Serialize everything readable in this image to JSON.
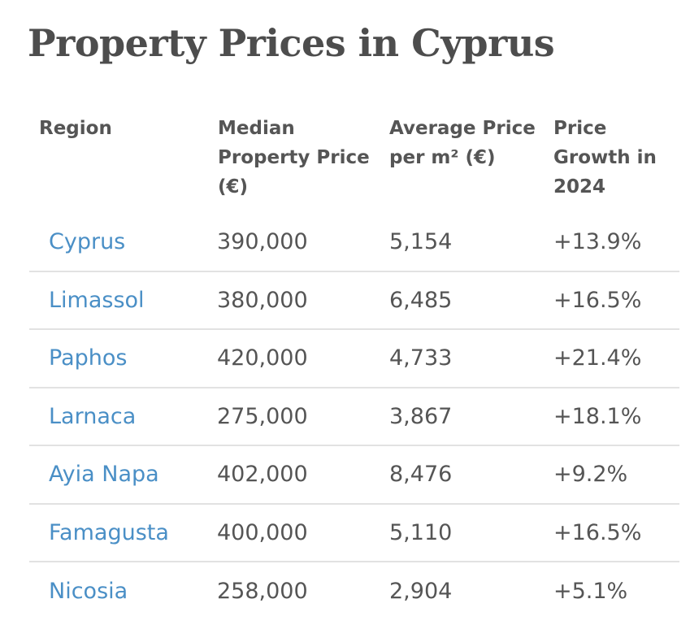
{
  "title": "Property Prices in Cyprus",
  "table": {
    "headers": {
      "region": "Region",
      "median": "Median Property Price (€)",
      "average": "Average Price per m² (€)",
      "growth": "Price Growth in 2024"
    },
    "rows": [
      {
        "region": "Cyprus",
        "median": "390,000",
        "average": "5,154",
        "growth": "+13.9%"
      },
      {
        "region": "Limassol",
        "median": "380,000",
        "average": "6,485",
        "growth": "+16.5%"
      },
      {
        "region": "Paphos",
        "median": "420,000",
        "average": "4,733",
        "growth": "+21.4%"
      },
      {
        "region": "Larnaca",
        "median": "275,000",
        "average": "3,867",
        "growth": "+18.1%"
      },
      {
        "region": "Ayia Napa",
        "median": "402,000",
        "average": "8,476",
        "growth": "+9.2%"
      },
      {
        "region": "Famagusta",
        "median": "400,000",
        "average": "5,110",
        "growth": "+16.5%"
      },
      {
        "region": "Nicosia",
        "median": "258,000",
        "average": "2,904",
        "growth": "+5.1%"
      }
    ]
  },
  "colors": {
    "link": "#4a8fc6",
    "text": "#555555",
    "divider": "#e2e2e2"
  }
}
